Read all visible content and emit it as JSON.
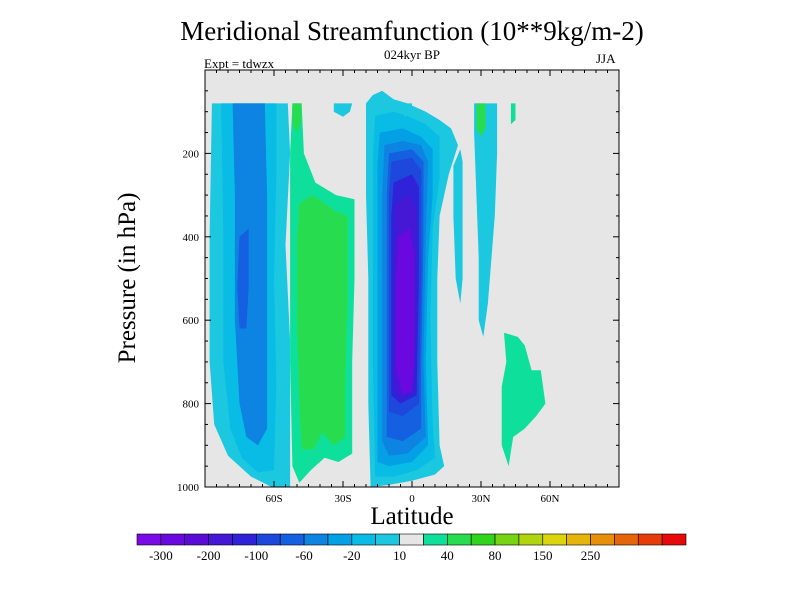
{
  "chart_data": {
    "type": "contour",
    "title": "Meridional Streamfunction (10**9kg/m-2)",
    "subtitle": "024kyr BP",
    "left_label": "Expt = tdwzx",
    "right_label": "JJA",
    "xlabel": "Latitude",
    "ylabel": "Pressure (in hPa)",
    "xlim": [
      -90,
      90
    ],
    "ylim": [
      0,
      1000
    ],
    "y_reversed": true,
    "x_ticks": [
      {
        "value": -60,
        "label": "60S"
      },
      {
        "value": -30,
        "label": "30S"
      },
      {
        "value": 0,
        "label": "0"
      },
      {
        "value": 30,
        "label": "30N"
      },
      {
        "value": 60,
        "label": "60N"
      }
    ],
    "y_ticks": [
      {
        "value": 200,
        "label": "200"
      },
      {
        "value": 400,
        "label": "400"
      },
      {
        "value": 600,
        "label": "600"
      },
      {
        "value": 800,
        "label": "800"
      },
      {
        "value": 1000,
        "label": "1000"
      }
    ],
    "colorbar": {
      "colors": [
        "#7a0ae6",
        "#6a08e0",
        "#5a0cd6",
        "#4418d4",
        "#3022d8",
        "#1e48dc",
        "#1560e0",
        "#0e84e2",
        "#04a0e6",
        "#08bce6",
        "#1cc8e0",
        "#e6e6e6",
        "#0ee09c",
        "#28dc50",
        "#30d41a",
        "#78d412",
        "#b0d410",
        "#dcd40c",
        "#e6b40a",
        "#e6900a",
        "#e6640a",
        "#e63c0a",
        "#e60a0a"
      ],
      "labels": [
        "-300",
        "-200",
        "-100",
        "-60",
        "-20",
        "10",
        "40",
        "80",
        "150",
        "250"
      ]
    },
    "regions": [
      {
        "name": "background-zero-region",
        "level": "0",
        "color": "#e6e6e6",
        "polygon": [
          [
            -90,
            0
          ],
          [
            90,
            0
          ],
          [
            90,
            1000
          ],
          [
            -90,
            1000
          ]
        ]
      },
      {
        "name": "sh-negative-outer-region",
        "level": "-10",
        "color": "#1cc8e0",
        "polygon": [
          [
            -87,
            80
          ],
          [
            -54,
            80
          ],
          [
            -53,
            200
          ],
          [
            -55,
            420
          ],
          [
            -53,
            650
          ],
          [
            -53,
            1000
          ],
          [
            -61,
            1000
          ],
          [
            -70,
            975
          ],
          [
            -80,
            925
          ],
          [
            -86,
            850
          ],
          [
            -88,
            700
          ],
          [
            -88,
            400
          ]
        ]
      },
      {
        "name": "sh-negative-middle-region",
        "level": "-20",
        "color": "#08bce6",
        "polygon": [
          [
            -83,
            80
          ],
          [
            -59,
            80
          ],
          [
            -59,
            250
          ],
          [
            -60,
            500
          ],
          [
            -59,
            750
          ],
          [
            -60,
            960
          ],
          [
            -67,
            965
          ],
          [
            -74,
            930
          ],
          [
            -79,
            860
          ],
          [
            -82,
            700
          ],
          [
            -82,
            400
          ]
        ]
      },
      {
        "name": "sh-negative-inner-region",
        "level": "-40",
        "color": "#0e84e2",
        "polygon": [
          [
            -78,
            80
          ],
          [
            -64,
            80
          ],
          [
            -63,
            300
          ],
          [
            -63,
            600
          ],
          [
            -63,
            860
          ],
          [
            -67,
            900
          ],
          [
            -72,
            880
          ],
          [
            -75,
            800
          ],
          [
            -77,
            600
          ],
          [
            -77,
            300
          ]
        ]
      },
      {
        "name": "sh-negative-core-region",
        "level": "-60",
        "color": "#1560e0",
        "polygon": [
          [
            -75,
            400
          ],
          [
            -71,
            380
          ],
          [
            -71,
            520
          ],
          [
            -72,
            620
          ],
          [
            -75,
            620
          ],
          [
            -76,
            520
          ]
        ]
      },
      {
        "name": "hadley-outer-region",
        "level": "-10",
        "color": "#1cc8e0",
        "polygon": [
          [
            -20,
            80
          ],
          [
            -17,
            60
          ],
          [
            -13,
            50
          ],
          [
            -8,
            70
          ],
          [
            -2,
            80
          ],
          [
            6,
            100
          ],
          [
            12,
            120
          ],
          [
            17,
            140
          ],
          [
            20,
            180
          ],
          [
            16,
            250
          ],
          [
            12,
            350
          ],
          [
            11,
            500
          ],
          [
            11,
            700
          ],
          [
            12,
            900
          ],
          [
            14,
            950
          ],
          [
            10,
            970
          ],
          [
            0,
            985
          ],
          [
            -10,
            995
          ],
          [
            -18,
            1000
          ],
          [
            -19,
            800
          ],
          [
            -19,
            500
          ],
          [
            -20,
            300
          ]
        ]
      },
      {
        "name": "hadley-level-20-region",
        "level": "-20",
        "color": "#08bce6",
        "polygon": [
          [
            -16,
            110
          ],
          [
            -8,
            100
          ],
          [
            -2,
            110
          ],
          [
            6,
            130
          ],
          [
            12,
            160
          ],
          [
            12,
            260
          ],
          [
            9,
            380
          ],
          [
            8,
            600
          ],
          [
            9,
            850
          ],
          [
            10,
            930
          ],
          [
            2,
            960
          ],
          [
            -8,
            975
          ],
          [
            -16,
            975
          ],
          [
            -17,
            700
          ],
          [
            -17,
            400
          ],
          [
            -17,
            200
          ]
        ]
      },
      {
        "name": "hadley-level-40-region",
        "level": "-40",
        "color": "#04a0e6",
        "polygon": [
          [
            -14,
            150
          ],
          [
            -4,
            140
          ],
          [
            4,
            160
          ],
          [
            9,
            190
          ],
          [
            9,
            300
          ],
          [
            7,
            450
          ],
          [
            6,
            700
          ],
          [
            7,
            900
          ],
          [
            0,
            940
          ],
          [
            -10,
            950
          ],
          [
            -15,
            940
          ],
          [
            -15,
            700
          ],
          [
            -15,
            400
          ],
          [
            -15,
            220
          ]
        ]
      },
      {
        "name": "hadley-level-60-region",
        "level": "-60",
        "color": "#0e84e2",
        "polygon": [
          [
            -12,
            180
          ],
          [
            -4,
            170
          ],
          [
            4,
            180
          ],
          [
            7,
            220
          ],
          [
            6,
            400
          ],
          [
            5,
            700
          ],
          [
            6,
            880
          ],
          [
            -2,
            920
          ],
          [
            -10,
            925
          ],
          [
            -13,
            890
          ],
          [
            -13,
            600
          ],
          [
            -13,
            300
          ]
        ]
      },
      {
        "name": "hadley-level-100-region",
        "level": "-100",
        "color": "#1560e0",
        "polygon": [
          [
            -10,
            200
          ],
          [
            0,
            190
          ],
          [
            5,
            220
          ],
          [
            5,
            400
          ],
          [
            4,
            700
          ],
          [
            4,
            860
          ],
          [
            -4,
            890
          ],
          [
            -11,
            880
          ],
          [
            -11,
            600
          ],
          [
            -11,
            300
          ]
        ]
      },
      {
        "name": "hadley-level-150-region",
        "level": "-150",
        "color": "#1e48dc",
        "polygon": [
          [
            -9,
            220
          ],
          [
            0,
            210
          ],
          [
            4,
            240
          ],
          [
            4,
            500
          ],
          [
            3,
            800
          ],
          [
            -4,
            830
          ],
          [
            -10,
            820
          ],
          [
            -10,
            500
          ],
          [
            -10,
            300
          ]
        ]
      },
      {
        "name": "hadley-level-200-region",
        "level": "-200",
        "color": "#3022d8",
        "polygon": [
          [
            -8,
            270
          ],
          [
            0,
            250
          ],
          [
            3,
            280
          ],
          [
            3,
            500
          ],
          [
            2,
            780
          ],
          [
            -5,
            800
          ],
          [
            -9,
            780
          ],
          [
            -9,
            500
          ],
          [
            -9,
            350
          ]
        ]
      },
      {
        "name": "hadley-level-250-region",
        "level": "-250",
        "color": "#4418d4",
        "polygon": [
          [
            -7,
            320
          ],
          [
            -1,
            300
          ],
          [
            2,
            340
          ],
          [
            2,
            600
          ],
          [
            1,
            770
          ],
          [
            -5,
            790
          ],
          [
            -8,
            760
          ],
          [
            -8,
            500
          ]
        ]
      },
      {
        "name": "hadley-core-region",
        "level": "-300",
        "color": "#6a08e0",
        "polygon": [
          [
            -6,
            400
          ],
          [
            -1,
            380
          ],
          [
            1,
            440
          ],
          [
            1,
            700
          ],
          [
            0,
            770
          ],
          [
            -4,
            780
          ],
          [
            -7,
            720
          ],
          [
            -7,
            500
          ]
        ]
      },
      {
        "name": "sh-positive-outer-region",
        "level": "10",
        "color": "#0ee09c",
        "polygon": [
          [
            -52,
            80
          ],
          [
            -48,
            80
          ],
          [
            -47,
            200
          ],
          [
            -42,
            270
          ],
          [
            -33,
            300
          ],
          [
            -25,
            310
          ],
          [
            -25,
            500
          ],
          [
            -26,
            700
          ],
          [
            -26,
            920
          ],
          [
            -32,
            940
          ],
          [
            -38,
            930
          ],
          [
            -44,
            960
          ],
          [
            -49,
            990
          ],
          [
            -52,
            950
          ],
          [
            -53,
            700
          ],
          [
            -53,
            400
          ],
          [
            -53,
            200
          ]
        ]
      },
      {
        "name": "sh-positive-inner-region",
        "level": "30",
        "color": "#28dc50",
        "polygon": [
          [
            -49,
            320
          ],
          [
            -43,
            300
          ],
          [
            -33,
            340
          ],
          [
            -28,
            350
          ],
          [
            -28,
            550
          ],
          [
            -29,
            750
          ],
          [
            -29,
            880
          ],
          [
            -34,
            900
          ],
          [
            -39,
            870
          ],
          [
            -43,
            910
          ],
          [
            -48,
            910
          ],
          [
            -49,
            800
          ],
          [
            -50,
            600
          ],
          [
            -50,
            400
          ]
        ]
      },
      {
        "name": "sh-upper-positive-region",
        "level": "10",
        "color": "#28dc50",
        "polygon": [
          [
            -52,
            80
          ],
          [
            -48,
            80
          ],
          [
            -48,
            120
          ],
          [
            -50,
            150
          ],
          [
            -52,
            130
          ]
        ]
      },
      {
        "name": "tropic-upper-negative-region",
        "level": "-10",
        "color": "#1cc8e0",
        "polygon": [
          [
            -34,
            80
          ],
          [
            -26,
            80
          ],
          [
            -27,
            100
          ],
          [
            -30,
            112
          ],
          [
            -34,
            100
          ]
        ]
      },
      {
        "name": "nh-upper-negative-region",
        "level": "-10",
        "color": "#1cc8e0",
        "polygon": [
          [
            -4,
            80
          ],
          [
            0,
            80
          ],
          [
            0,
            105
          ],
          [
            -3,
            112
          ],
          [
            -5,
            100
          ]
        ]
      },
      {
        "name": "nh-subtropic-negative-region",
        "level": "-10",
        "color": "#1cc8e0",
        "polygon": [
          [
            18,
            230
          ],
          [
            21,
            190
          ],
          [
            22,
            220
          ],
          [
            22,
            380
          ],
          [
            22,
            500
          ],
          [
            21,
            560
          ],
          [
            19,
            500
          ],
          [
            18,
            350
          ]
        ]
      },
      {
        "name": "nh-midlat-negative-region",
        "level": "-10",
        "color": "#1cc8e0",
        "polygon": [
          [
            27,
            80
          ],
          [
            37,
            80
          ],
          [
            37,
            200
          ],
          [
            36,
            350
          ],
          [
            33,
            560
          ],
          [
            31,
            640
          ],
          [
            29,
            600
          ],
          [
            29,
            450
          ],
          [
            28,
            300
          ],
          [
            27,
            150
          ]
        ]
      },
      {
        "name": "nh-upper-positive-region",
        "level": "10",
        "color": "#28dc50",
        "polygon": [
          [
            28,
            80
          ],
          [
            32,
            80
          ],
          [
            32,
            140
          ],
          [
            30,
            160
          ],
          [
            28,
            140
          ]
        ]
      },
      {
        "name": "nh-upper-right-positive-region",
        "level": "10",
        "color": "#0ee09c",
        "polygon": [
          [
            43,
            80
          ],
          [
            45,
            80
          ],
          [
            45,
            120
          ],
          [
            43,
            130
          ]
        ]
      },
      {
        "name": "nh-mid-positive-region",
        "level": "10",
        "color": "#0ee09c",
        "polygon": [
          [
            40,
            630
          ],
          [
            46,
            640
          ],
          [
            49,
            660
          ],
          [
            52,
            720
          ],
          [
            56,
            720
          ],
          [
            58,
            800
          ],
          [
            54,
            830
          ],
          [
            49,
            860
          ],
          [
            44,
            880
          ],
          [
            42,
            950
          ],
          [
            39,
            900
          ],
          [
            39,
            760
          ],
          [
            41,
            700
          ]
        ]
      }
    ]
  }
}
